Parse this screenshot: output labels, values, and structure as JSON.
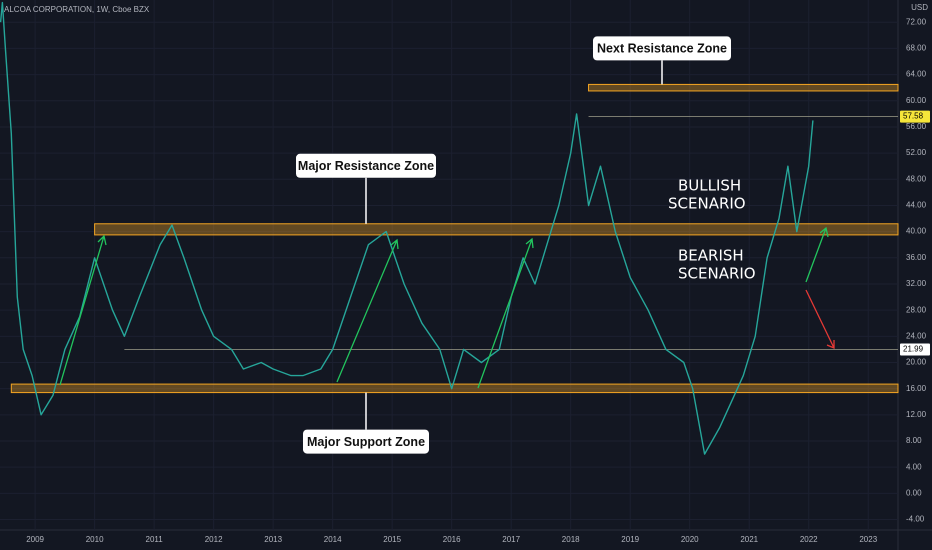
{
  "chart_data": {
    "type": "line",
    "title": "ALCOA CORPORATION, 1W, Cboe BZX",
    "y_unit": "USD",
    "xlim": [
      2008.41,
      2023.5
    ],
    "ylim": [
      -5.6,
      75.4
    ],
    "xticks": [
      2009,
      2010,
      2011,
      2012,
      2013,
      2014,
      2015,
      2016,
      2017,
      2018,
      2019,
      2020,
      2021,
      2022,
      2023
    ],
    "yticks": [
      {
        "value": 72,
        "label": "72.00"
      },
      {
        "value": 68,
        "label": "68.00"
      },
      {
        "value": 64,
        "label": "64.00"
      },
      {
        "value": 60,
        "label": "60.00"
      },
      {
        "value": 56,
        "label": "56.00"
      },
      {
        "value": 52,
        "label": "52.00"
      },
      {
        "value": 48,
        "label": "48.00"
      },
      {
        "value": 44,
        "label": "44.00"
      },
      {
        "value": 40,
        "label": "40.00"
      },
      {
        "value": 36,
        "label": "36.00"
      },
      {
        "value": 32,
        "label": "32.00"
      },
      {
        "value": 28,
        "label": "28.00"
      },
      {
        "value": 24,
        "label": "24.00"
      },
      {
        "value": 20,
        "label": "20.00"
      },
      {
        "value": 16,
        "label": "16.00"
      },
      {
        "value": 12,
        "label": "12.00"
      },
      {
        "value": 8,
        "label": "8.00"
      },
      {
        "value": 4,
        "label": "4.00"
      },
      {
        "value": 0,
        "label": "0.00"
      },
      {
        "value": -4,
        "label": "-4.00"
      }
    ],
    "series": [
      {
        "color": "#26a69a",
        "x": [
          2008.42,
          2008.45,
          2008.5,
          2008.6,
          2008.7,
          2008.8,
          2008.95,
          2009.1,
          2009.3,
          2009.5,
          2009.75,
          2010.0,
          2010.3,
          2010.5,
          2010.75,
          2011.1,
          2011.3,
          2011.5,
          2011.8,
          2012.0,
          2012.3,
          2012.5,
          2012.8,
          2013.0,
          2013.3,
          2013.5,
          2013.8,
          2014.0,
          2014.3,
          2014.6,
          2014.9,
          2015.2,
          2015.5,
          2015.8,
          2016.0,
          2016.2,
          2016.5,
          2016.8,
          2017.0,
          2017.2,
          2017.4,
          2017.6,
          2017.8,
          2018.0,
          2018.1,
          2018.3,
          2018.5,
          2018.75,
          2019.0,
          2019.3,
          2019.6,
          2019.9,
          2020.05,
          2020.25,
          2020.5,
          2020.7,
          2020.9,
          2021.1,
          2021.3,
          2021.5,
          2021.65,
          2021.8,
          2022.0,
          2022.07
        ],
        "values": [
          72,
          75,
          68,
          55,
          30,
          22,
          18,
          12,
          15,
          22,
          27,
          36,
          28,
          24,
          30,
          38,
          41,
          36,
          28,
          24,
          22,
          19,
          20,
          19,
          18,
          18,
          19,
          22,
          30,
          38,
          40,
          32,
          26,
          22,
          16,
          22,
          20,
          22,
          30,
          36,
          32,
          38,
          44,
          52,
          58,
          44,
          50,
          40,
          33,
          28,
          22,
          20,
          16,
          6,
          10,
          14,
          18,
          24,
          36,
          42,
          50,
          40,
          50,
          57
        ]
      }
    ],
    "zones": [
      {
        "label": "Next Resistance Zone",
        "x0": 2018.3,
        "ylim": [
          61.5,
          62.5
        ]
      },
      {
        "label": "Major Resistance Zone",
        "x0": 2010.0,
        "ylim": [
          39.5,
          41.2
        ]
      },
      {
        "label": "Major Support Zone",
        "x0": 2008.6,
        "ylim": [
          15.4,
          16.7
        ]
      }
    ],
    "levels": [
      {
        "value": 57.58,
        "label": "57.58",
        "x0": 2018.3,
        "color": "#f5e53a"
      },
      {
        "value": 21.99,
        "label": "21.99",
        "x0": 2010.5,
        "color": "#ffffff"
      }
    ],
    "annotations": [
      "BULLISH",
      "SCENARIO",
      "BEARISH",
      "SCENARIO"
    ]
  }
}
